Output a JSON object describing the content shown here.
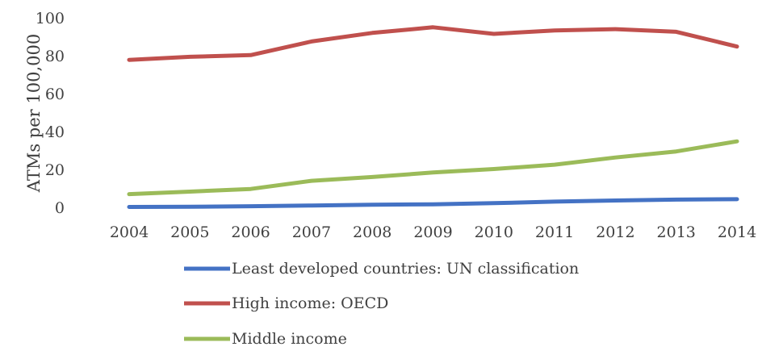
{
  "chart_data": {
    "type": "line",
    "title": "",
    "xlabel": "",
    "ylabel": "ATMs per 100,000",
    "categories": [
      "2004",
      "2005",
      "2006",
      "2007",
      "2008",
      "2009",
      "2010",
      "2011",
      "2012",
      "2013",
      "2014"
    ],
    "yticks": [
      "0",
      "20",
      "40",
      "60",
      "80",
      "100"
    ],
    "ylim": [
      0,
      100
    ],
    "grid": false,
    "legend_position": "bottom",
    "series": [
      {
        "name": "Least developed countries: UN classification",
        "color": "#4472c4",
        "values": [
          0.2,
          0.3,
          0.6,
          1.0,
          1.4,
          1.6,
          2.2,
          3.0,
          3.6,
          4.1,
          4.3
        ]
      },
      {
        "name": "High income: OECD",
        "color": "#c0504d",
        "values": [
          77.8,
          79.4,
          80.3,
          87.5,
          92.0,
          95.0,
          91.5,
          93.3,
          94.0,
          92.6,
          84.8
        ]
      },
      {
        "name": "Middle income",
        "color": "#9bbb59",
        "values": [
          7.0,
          8.3,
          9.7,
          14.0,
          16.0,
          18.4,
          20.2,
          22.5,
          26.3,
          29.5,
          34.8
        ]
      }
    ]
  }
}
